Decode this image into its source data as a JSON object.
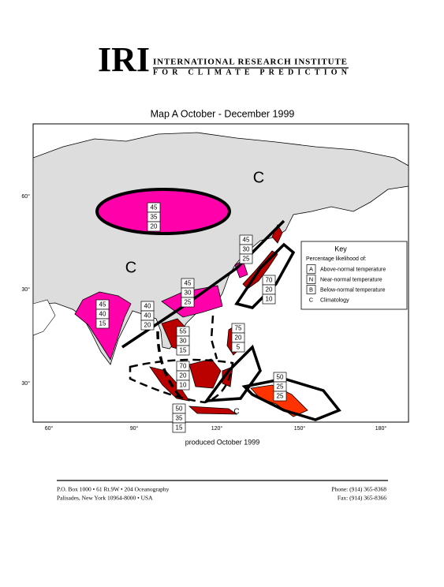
{
  "header": {
    "logo": "IRI",
    "line1": "INTERNATIONAL RESEARCH INSTITUTE",
    "line2": "FOR CLIMATE PREDICTION"
  },
  "map": {
    "title": "Map A  October - December 1999",
    "lat_labels": [
      "60°",
      "30°",
      "30°"
    ],
    "lon_labels": [
      "60°",
      "90°",
      "120°",
      "150°",
      "180°"
    ],
    "climatology_labels": [
      "C",
      "C",
      "C"
    ],
    "boxes": [
      [
        "45",
        "35",
        "20"
      ],
      [
        "45",
        "30",
        "25"
      ],
      [
        "45",
        "30",
        "25"
      ],
      [
        "45",
        "40",
        "15"
      ],
      [
        "40",
        "40",
        "20"
      ],
      [
        "70",
        "20",
        "10"
      ],
      [
        "55",
        "30",
        "15"
      ],
      [
        "75",
        "20",
        "5"
      ],
      [
        "70",
        "20",
        "10"
      ],
      [
        "50",
        "25",
        "25"
      ],
      [
        "50",
        "35",
        "15"
      ]
    ],
    "key": {
      "title": "Key",
      "subtitle": "Percentage likelihood of:",
      "items": [
        {
          "code": "A",
          "text": "Above-normal temperature"
        },
        {
          "code": "N",
          "text": "Near-normal temperature"
        },
        {
          "code": "B",
          "text": "Below-normal temperature"
        },
        {
          "code": "C",
          "text": "Climatology"
        }
      ]
    },
    "produced": "produced October 1999"
  },
  "footer": {
    "address1": "P.O. Box 1000 • 61 Rt.9W • 204 Oceanography",
    "address2": "Palisades, New York 10964-8000 • USA",
    "phone": "Phone: (914) 365-8368",
    "fax": "Fax: (914) 365-8366"
  }
}
